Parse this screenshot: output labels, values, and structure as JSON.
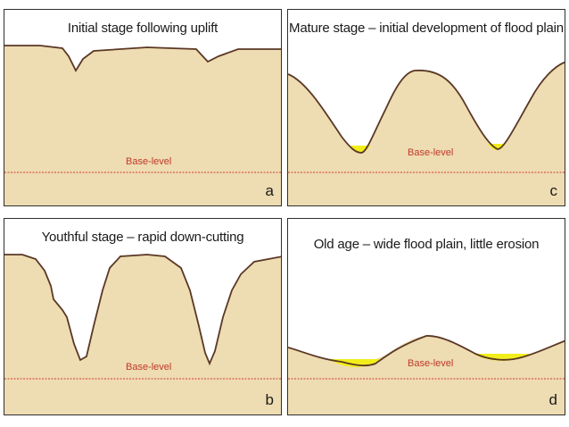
{
  "panels": {
    "a": {
      "title": "Initial stage following uplift",
      "base_label": "Base-level",
      "letter": "a"
    },
    "b": {
      "title": "Youthful stage – rapid down-cutting",
      "base_label": "Base-level",
      "letter": "b"
    },
    "c": {
      "title": "Mature stage – initial development of flood plain",
      "base_label": "Base-level",
      "letter": "c"
    },
    "d": {
      "title": "Old age –  wide flood plain, little erosion",
      "base_label": "Base-level",
      "letter": "d"
    }
  },
  "colors": {
    "land": "#eedcb2",
    "outline": "#5a3825",
    "floodplain": "#f2ee1c",
    "base_level_line": "#d23a2a",
    "border": "#2f2f2f"
  }
}
